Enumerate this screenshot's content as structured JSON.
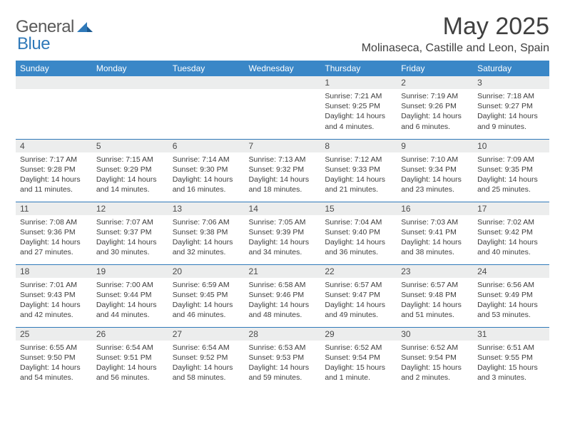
{
  "brand": {
    "general": "General",
    "blue": "Blue"
  },
  "title": "May 2025",
  "location": "Molinaseca, Castille and Leon, Spain",
  "colors": {
    "header_bg": "#3a87c7",
    "header_text": "#ffffff",
    "daynum_bg": "#eceded",
    "row_border": "#2f79b9",
    "body_text": "#3d3d3d",
    "title_text": "#404040",
    "logo_gray": "#5a5a5a",
    "logo_blue": "#2f79b9",
    "page_bg": "#ffffff"
  },
  "typography": {
    "month_title_size": 34,
    "location_size": 16,
    "weekday_size": 12,
    "daynum_size": 12,
    "body_size": 10.5
  },
  "weekdays": [
    "Sunday",
    "Monday",
    "Tuesday",
    "Wednesday",
    "Thursday",
    "Friday",
    "Saturday"
  ],
  "weeks": [
    [
      null,
      null,
      null,
      null,
      {
        "n": "1",
        "sr": "Sunrise: 7:21 AM",
        "ss": "Sunset: 9:25 PM",
        "dl": "Daylight: 14 hours and 4 minutes."
      },
      {
        "n": "2",
        "sr": "Sunrise: 7:19 AM",
        "ss": "Sunset: 9:26 PM",
        "dl": "Daylight: 14 hours and 6 minutes."
      },
      {
        "n": "3",
        "sr": "Sunrise: 7:18 AM",
        "ss": "Sunset: 9:27 PM",
        "dl": "Daylight: 14 hours and 9 minutes."
      }
    ],
    [
      {
        "n": "4",
        "sr": "Sunrise: 7:17 AM",
        "ss": "Sunset: 9:28 PM",
        "dl": "Daylight: 14 hours and 11 minutes."
      },
      {
        "n": "5",
        "sr": "Sunrise: 7:15 AM",
        "ss": "Sunset: 9:29 PM",
        "dl": "Daylight: 14 hours and 14 minutes."
      },
      {
        "n": "6",
        "sr": "Sunrise: 7:14 AM",
        "ss": "Sunset: 9:30 PM",
        "dl": "Daylight: 14 hours and 16 minutes."
      },
      {
        "n": "7",
        "sr": "Sunrise: 7:13 AM",
        "ss": "Sunset: 9:32 PM",
        "dl": "Daylight: 14 hours and 18 minutes."
      },
      {
        "n": "8",
        "sr": "Sunrise: 7:12 AM",
        "ss": "Sunset: 9:33 PM",
        "dl": "Daylight: 14 hours and 21 minutes."
      },
      {
        "n": "9",
        "sr": "Sunrise: 7:10 AM",
        "ss": "Sunset: 9:34 PM",
        "dl": "Daylight: 14 hours and 23 minutes."
      },
      {
        "n": "10",
        "sr": "Sunrise: 7:09 AM",
        "ss": "Sunset: 9:35 PM",
        "dl": "Daylight: 14 hours and 25 minutes."
      }
    ],
    [
      {
        "n": "11",
        "sr": "Sunrise: 7:08 AM",
        "ss": "Sunset: 9:36 PM",
        "dl": "Daylight: 14 hours and 27 minutes."
      },
      {
        "n": "12",
        "sr": "Sunrise: 7:07 AM",
        "ss": "Sunset: 9:37 PM",
        "dl": "Daylight: 14 hours and 30 minutes."
      },
      {
        "n": "13",
        "sr": "Sunrise: 7:06 AM",
        "ss": "Sunset: 9:38 PM",
        "dl": "Daylight: 14 hours and 32 minutes."
      },
      {
        "n": "14",
        "sr": "Sunrise: 7:05 AM",
        "ss": "Sunset: 9:39 PM",
        "dl": "Daylight: 14 hours and 34 minutes."
      },
      {
        "n": "15",
        "sr": "Sunrise: 7:04 AM",
        "ss": "Sunset: 9:40 PM",
        "dl": "Daylight: 14 hours and 36 minutes."
      },
      {
        "n": "16",
        "sr": "Sunrise: 7:03 AM",
        "ss": "Sunset: 9:41 PM",
        "dl": "Daylight: 14 hours and 38 minutes."
      },
      {
        "n": "17",
        "sr": "Sunrise: 7:02 AM",
        "ss": "Sunset: 9:42 PM",
        "dl": "Daylight: 14 hours and 40 minutes."
      }
    ],
    [
      {
        "n": "18",
        "sr": "Sunrise: 7:01 AM",
        "ss": "Sunset: 9:43 PM",
        "dl": "Daylight: 14 hours and 42 minutes."
      },
      {
        "n": "19",
        "sr": "Sunrise: 7:00 AM",
        "ss": "Sunset: 9:44 PM",
        "dl": "Daylight: 14 hours and 44 minutes."
      },
      {
        "n": "20",
        "sr": "Sunrise: 6:59 AM",
        "ss": "Sunset: 9:45 PM",
        "dl": "Daylight: 14 hours and 46 minutes."
      },
      {
        "n": "21",
        "sr": "Sunrise: 6:58 AM",
        "ss": "Sunset: 9:46 PM",
        "dl": "Daylight: 14 hours and 48 minutes."
      },
      {
        "n": "22",
        "sr": "Sunrise: 6:57 AM",
        "ss": "Sunset: 9:47 PM",
        "dl": "Daylight: 14 hours and 49 minutes."
      },
      {
        "n": "23",
        "sr": "Sunrise: 6:57 AM",
        "ss": "Sunset: 9:48 PM",
        "dl": "Daylight: 14 hours and 51 minutes."
      },
      {
        "n": "24",
        "sr": "Sunrise: 6:56 AM",
        "ss": "Sunset: 9:49 PM",
        "dl": "Daylight: 14 hours and 53 minutes."
      }
    ],
    [
      {
        "n": "25",
        "sr": "Sunrise: 6:55 AM",
        "ss": "Sunset: 9:50 PM",
        "dl": "Daylight: 14 hours and 54 minutes."
      },
      {
        "n": "26",
        "sr": "Sunrise: 6:54 AM",
        "ss": "Sunset: 9:51 PM",
        "dl": "Daylight: 14 hours and 56 minutes."
      },
      {
        "n": "27",
        "sr": "Sunrise: 6:54 AM",
        "ss": "Sunset: 9:52 PM",
        "dl": "Daylight: 14 hours and 58 minutes."
      },
      {
        "n": "28",
        "sr": "Sunrise: 6:53 AM",
        "ss": "Sunset: 9:53 PM",
        "dl": "Daylight: 14 hours and 59 minutes."
      },
      {
        "n": "29",
        "sr": "Sunrise: 6:52 AM",
        "ss": "Sunset: 9:54 PM",
        "dl": "Daylight: 15 hours and 1 minute."
      },
      {
        "n": "30",
        "sr": "Sunrise: 6:52 AM",
        "ss": "Sunset: 9:54 PM",
        "dl": "Daylight: 15 hours and 2 minutes."
      },
      {
        "n": "31",
        "sr": "Sunrise: 6:51 AM",
        "ss": "Sunset: 9:55 PM",
        "dl": "Daylight: 15 hours and 3 minutes."
      }
    ]
  ]
}
